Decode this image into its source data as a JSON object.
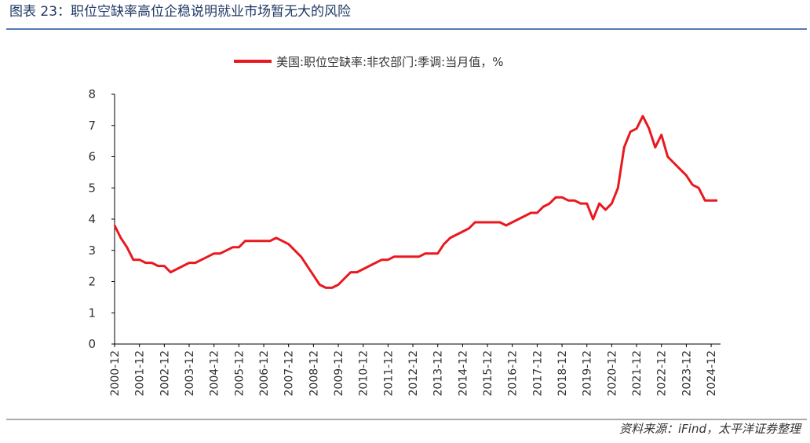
{
  "chart_data": {
    "type": "line",
    "title": "图表 23：职位空缺率高位企稳说明就业市场暂无大的风险",
    "source": "资料来源：iFind，太平洋证券整理",
    "x": [
      "2000-12",
      "2001-03",
      "2001-06",
      "2001-09",
      "2001-12",
      "2002-03",
      "2002-06",
      "2002-09",
      "2002-12",
      "2003-03",
      "2003-06",
      "2003-09",
      "2003-12",
      "2004-03",
      "2004-06",
      "2004-09",
      "2004-12",
      "2005-03",
      "2005-06",
      "2005-09",
      "2005-12",
      "2006-03",
      "2006-06",
      "2006-09",
      "2006-12",
      "2007-03",
      "2007-06",
      "2007-09",
      "2007-12",
      "2008-03",
      "2008-06",
      "2008-09",
      "2008-12",
      "2009-03",
      "2009-06",
      "2009-09",
      "2009-12",
      "2010-03",
      "2010-06",
      "2010-09",
      "2010-12",
      "2011-03",
      "2011-06",
      "2011-09",
      "2011-12",
      "2012-03",
      "2012-06",
      "2012-09",
      "2012-12",
      "2013-03",
      "2013-06",
      "2013-09",
      "2013-12",
      "2014-03",
      "2014-06",
      "2014-09",
      "2014-12",
      "2015-03",
      "2015-06",
      "2015-09",
      "2015-12",
      "2016-03",
      "2016-06",
      "2016-09",
      "2016-12",
      "2017-03",
      "2017-06",
      "2017-09",
      "2017-12",
      "2018-03",
      "2018-06",
      "2018-09",
      "2018-12",
      "2019-03",
      "2019-06",
      "2019-09",
      "2019-12",
      "2020-03",
      "2020-06",
      "2020-09",
      "2020-12",
      "2021-03",
      "2021-06",
      "2021-09",
      "2021-12",
      "2022-03",
      "2022-06",
      "2022-09",
      "2022-12",
      "2023-03",
      "2023-06",
      "2023-09",
      "2023-12",
      "2024-03",
      "2024-06",
      "2024-09",
      "2024-12",
      "2025-03"
    ],
    "series": [
      {
        "name": "美国:职位空缺率:非农部门:季调:当月值，%",
        "color": "#e8191f",
        "values": [
          3.8,
          3.4,
          3.1,
          2.7,
          2.7,
          2.6,
          2.6,
          2.5,
          2.5,
          2.3,
          2.4,
          2.5,
          2.6,
          2.6,
          2.7,
          2.8,
          2.9,
          2.9,
          3.0,
          3.1,
          3.1,
          3.3,
          3.3,
          3.3,
          3.3,
          3.3,
          3.4,
          3.3,
          3.2,
          3.0,
          2.8,
          2.5,
          2.2,
          1.9,
          1.8,
          1.8,
          1.9,
          2.1,
          2.3,
          2.3,
          2.4,
          2.5,
          2.6,
          2.7,
          2.7,
          2.8,
          2.8,
          2.8,
          2.8,
          2.8,
          2.9,
          2.9,
          2.9,
          3.2,
          3.4,
          3.5,
          3.6,
          3.7,
          3.9,
          3.9,
          3.9,
          3.9,
          3.9,
          3.8,
          3.9,
          4.0,
          4.1,
          4.2,
          4.2,
          4.4,
          4.5,
          4.7,
          4.7,
          4.6,
          4.6,
          4.5,
          4.5,
          4.0,
          4.5,
          4.3,
          4.5,
          5.0,
          6.3,
          6.8,
          6.9,
          7.3,
          6.9,
          6.3,
          6.7,
          6.0,
          5.8,
          5.6,
          5.4,
          5.1,
          5.0,
          4.6,
          4.6,
          4.6
        ]
      }
    ],
    "xticks": [
      "2000-12",
      "2001-12",
      "2002-12",
      "2003-12",
      "2004-12",
      "2005-12",
      "2006-12",
      "2007-12",
      "2008-12",
      "2009-12",
      "2010-12",
      "2011-12",
      "2012-12",
      "2013-12",
      "2014-12",
      "2015-12",
      "2016-12",
      "2017-12",
      "2018-12",
      "2019-12",
      "2020-12",
      "2021-12",
      "2022-12",
      "2023-12",
      "2024-12"
    ],
    "ylim": [
      0,
      8
    ],
    "yticks": [
      0,
      1,
      2,
      3,
      4,
      5,
      6,
      7,
      8
    ],
    "grid": false
  }
}
